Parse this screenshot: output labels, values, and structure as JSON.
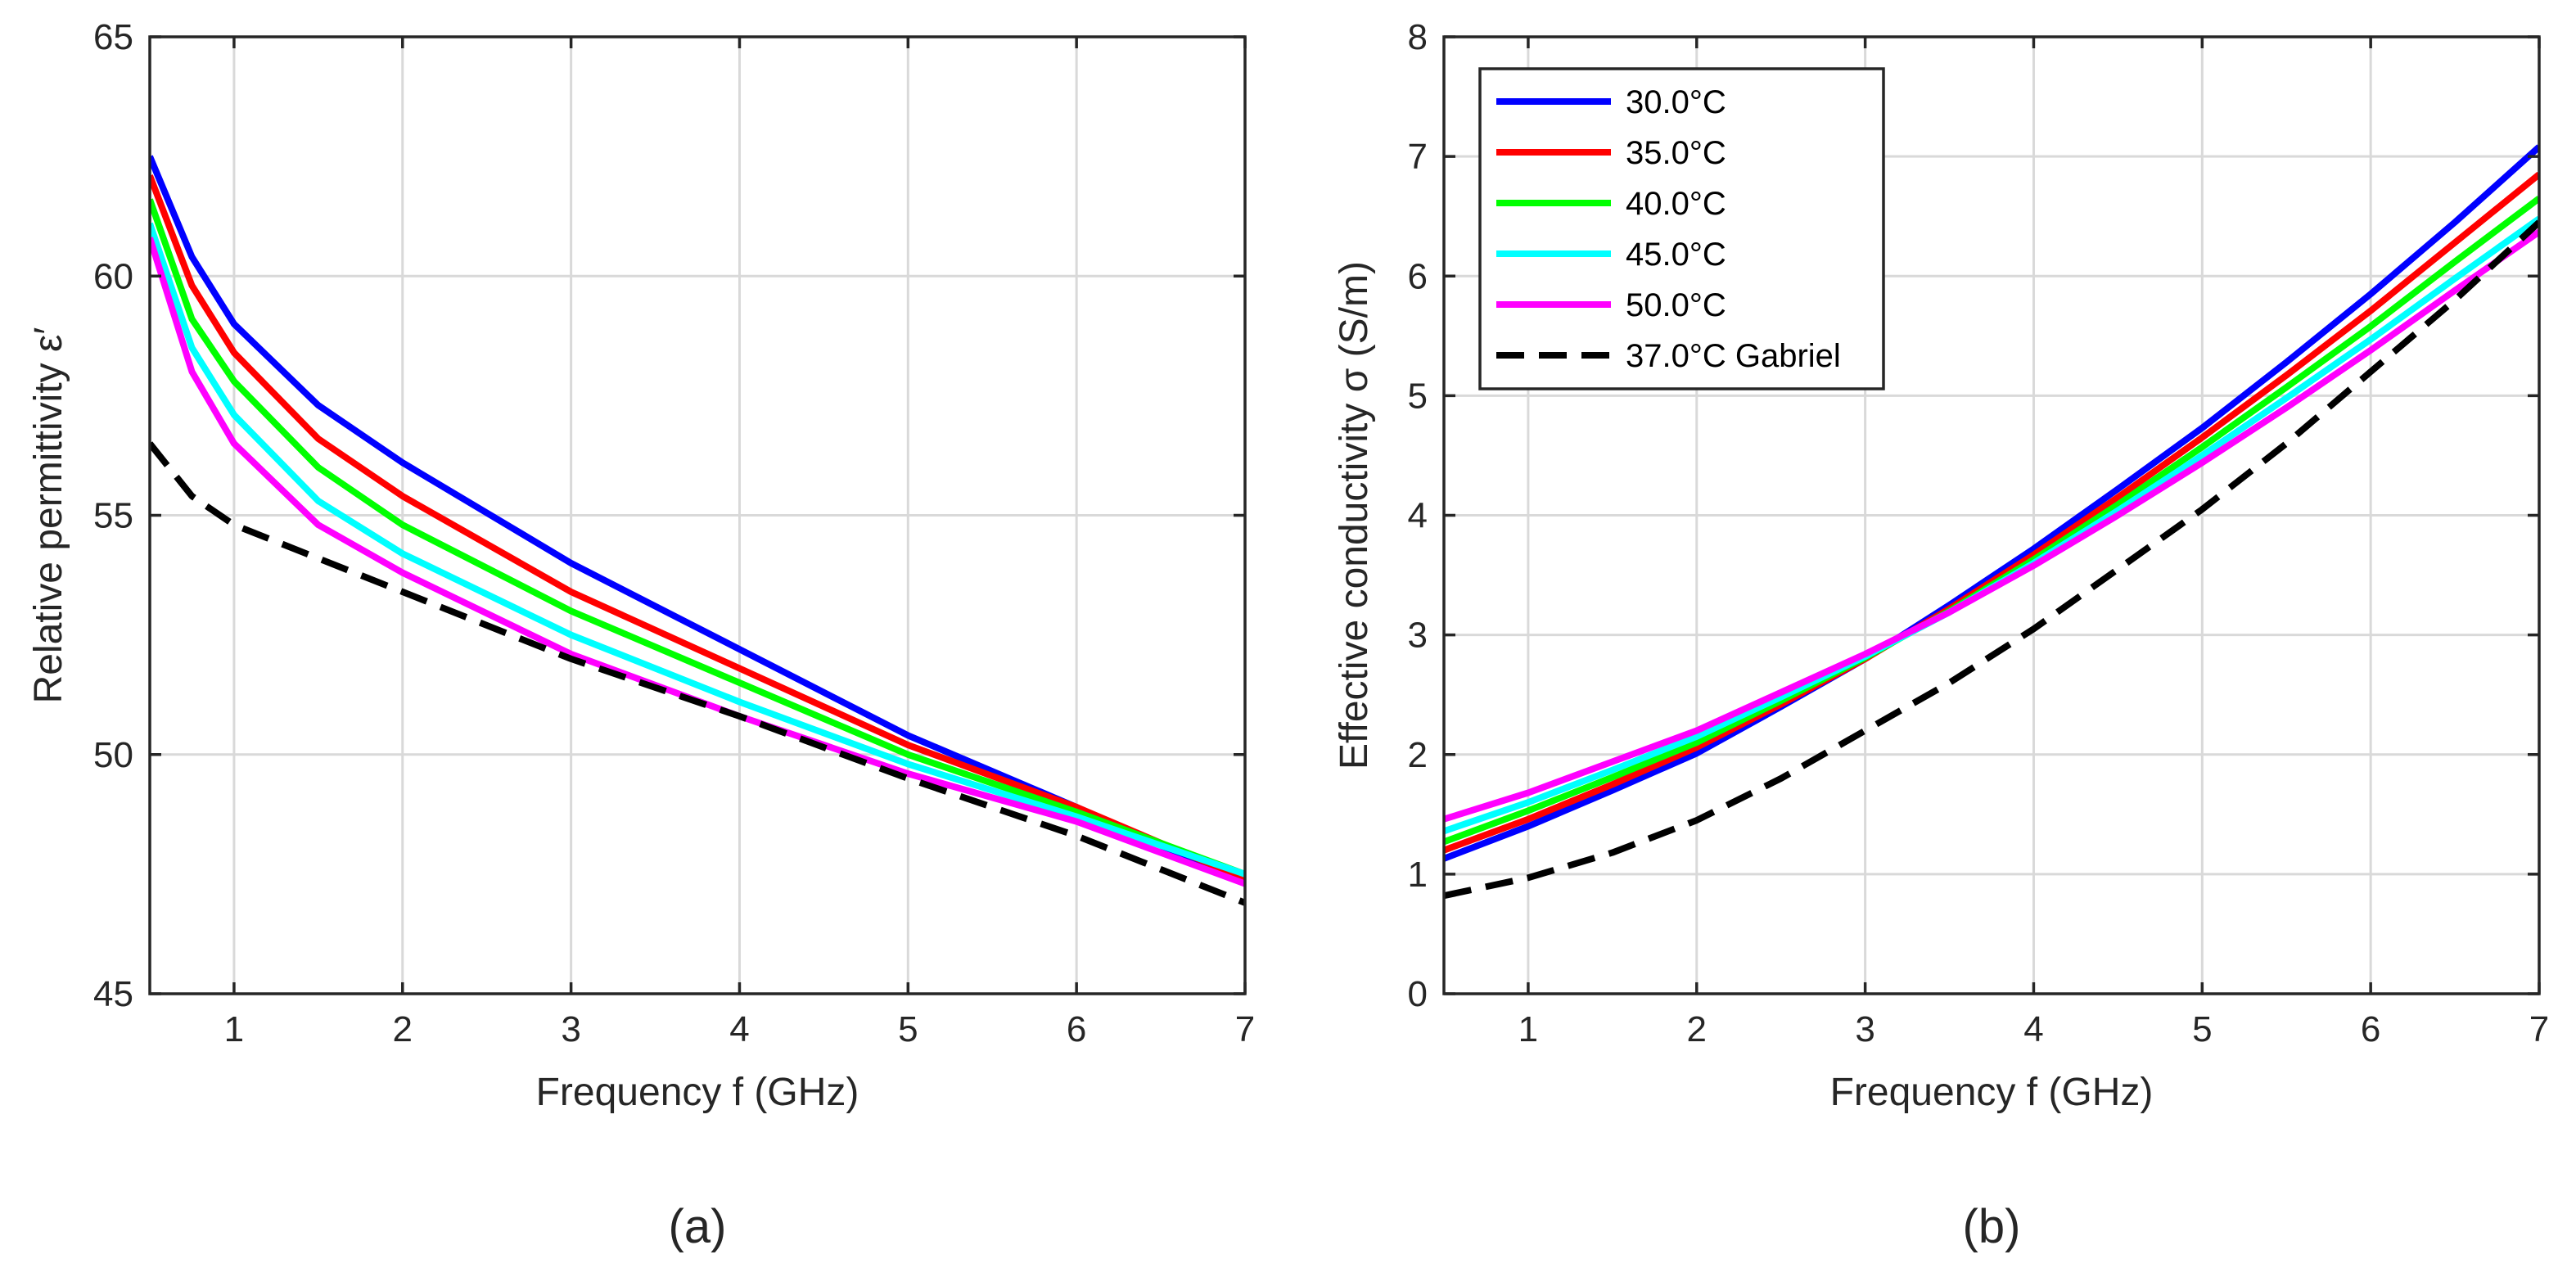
{
  "chart_data": [
    {
      "type": "line",
      "panel_label": "(a)",
      "xlabel": "Frequency f (GHz)",
      "ylabel": "Relative permittivity ε′",
      "xlim": [
        0.5,
        7
      ],
      "ylim": [
        45,
        65
      ],
      "xticks": [
        1,
        2,
        3,
        4,
        5,
        6,
        7
      ],
      "yticks": [
        45,
        50,
        55,
        60,
        65
      ],
      "grid": true,
      "x": [
        0.5,
        0.75,
        1,
        1.5,
        2,
        3,
        4,
        5,
        6,
        7
      ],
      "series": [
        {
          "name": "30.0°C",
          "color": "#0000ff",
          "style": "solid",
          "values": [
            62.5,
            60.4,
            59.0,
            57.3,
            56.1,
            54.0,
            52.2,
            50.4,
            48.9,
            47.3
          ]
        },
        {
          "name": "35.0°C",
          "color": "#ff0000",
          "style": "solid",
          "values": [
            62.1,
            59.8,
            58.4,
            56.6,
            55.4,
            53.4,
            51.8,
            50.2,
            48.9,
            47.4
          ]
        },
        {
          "name": "40.0°C",
          "color": "#00ff00",
          "style": "solid",
          "values": [
            61.6,
            59.1,
            57.8,
            56.0,
            54.8,
            53.0,
            51.5,
            50.0,
            48.8,
            47.5
          ]
        },
        {
          "name": "45.0°C",
          "color": "#00ffff",
          "style": "solid",
          "values": [
            61.1,
            58.5,
            57.1,
            55.3,
            54.2,
            52.5,
            51.1,
            49.8,
            48.7,
            47.5
          ]
        },
        {
          "name": "50.0°C",
          "color": "#ff00ff",
          "style": "solid",
          "values": [
            60.8,
            58.0,
            56.5,
            54.8,
            53.8,
            52.1,
            50.8,
            49.6,
            48.6,
            47.3
          ]
        },
        {
          "name": "37.0°C Gabriel",
          "color": "#000000",
          "style": "dashed",
          "values": [
            56.5,
            55.4,
            54.8,
            54.1,
            53.4,
            52.0,
            50.8,
            49.5,
            48.3,
            46.9
          ]
        }
      ]
    },
    {
      "type": "line",
      "panel_label": "(b)",
      "xlabel": "Frequency f (GHz)",
      "ylabel": "Effective conductivity σ (S/m)",
      "xlim": [
        0.5,
        7
      ],
      "ylim": [
        0,
        8
      ],
      "xticks": [
        1,
        2,
        3,
        4,
        5,
        6,
        7
      ],
      "yticks": [
        0,
        1,
        2,
        3,
        4,
        5,
        6,
        7,
        8
      ],
      "grid": true,
      "legend_position": "top-left",
      "x": [
        0.5,
        1,
        1.5,
        2,
        2.5,
        3,
        3.5,
        4,
        4.5,
        5,
        5.5,
        6,
        6.5,
        7
      ],
      "series": [
        {
          "name": "30.0°C",
          "color": "#0000ff",
          "style": "solid",
          "values": [
            1.13,
            1.4,
            1.7,
            2.01,
            2.4,
            2.8,
            3.25,
            3.72,
            4.22,
            4.73,
            5.28,
            5.85,
            6.45,
            7.08
          ]
        },
        {
          "name": "35.0°C",
          "color": "#ff0000",
          "style": "solid",
          "values": [
            1.2,
            1.46,
            1.75,
            2.06,
            2.42,
            2.8,
            3.22,
            3.67,
            4.15,
            4.65,
            5.17,
            5.71,
            6.28,
            6.85
          ]
        },
        {
          "name": "40.0°C",
          "color": "#00ff00",
          "style": "solid",
          "values": [
            1.27,
            1.53,
            1.81,
            2.1,
            2.45,
            2.81,
            3.2,
            3.63,
            4.09,
            4.57,
            5.07,
            5.58,
            6.12,
            6.65
          ]
        },
        {
          "name": "45.0°C",
          "color": "#00ffff",
          "style": "solid",
          "values": [
            1.36,
            1.6,
            1.87,
            2.15,
            2.48,
            2.82,
            3.19,
            3.6,
            4.04,
            4.5,
            4.98,
            5.47,
            5.98,
            6.48
          ]
        },
        {
          "name": "50.0°C",
          "color": "#ff00ff",
          "style": "solid",
          "values": [
            1.46,
            1.68,
            1.94,
            2.2,
            2.52,
            2.84,
            3.19,
            3.58,
            4.0,
            4.44,
            4.9,
            5.38,
            5.88,
            6.37
          ]
        },
        {
          "name": "37.0°C Gabriel",
          "color": "#000000",
          "style": "dashed",
          "values": [
            0.82,
            0.97,
            1.18,
            1.45,
            1.8,
            2.2,
            2.6,
            3.05,
            3.55,
            4.05,
            4.6,
            5.2,
            5.8,
            6.45
          ]
        }
      ]
    }
  ]
}
